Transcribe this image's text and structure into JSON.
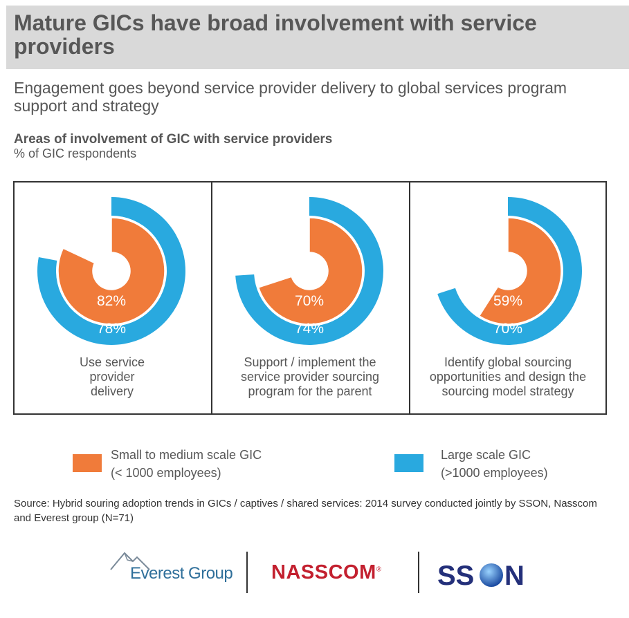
{
  "header": {
    "title": "Mature GICs have broad involvement with service providers",
    "subtitle": "Engagement goes beyond service provider delivery to global services program support and strategy"
  },
  "chart_data": {
    "type": "donut",
    "title": "Areas of involvement of GIC with service providers",
    "subtitle": "% of GIC respondents",
    "unit": "%",
    "categories": [
      "Use service provider delivery",
      "Support / implement the service provider sourcing program for the parent",
      "Identify global sourcing opportunities and design the sourcing model strategy"
    ],
    "series": [
      {
        "name": "Small to medium scale GIC (< 1000 employees)",
        "ring": "inner",
        "color": "#f07b3a",
        "values": [
          82,
          70,
          59
        ]
      },
      {
        "name": "Large scale GIC (>1000 employees)",
        "ring": "outer",
        "color": "#29a9df",
        "values": [
          78,
          74,
          70
        ]
      }
    ]
  },
  "panels": [
    {
      "label_lines": [
        "Use service",
        "provider",
        "delivery"
      ],
      "inner_label": "82%",
      "outer_label": "78%"
    },
    {
      "label_lines": [
        "Support / implement the",
        "service provider sourcing",
        "program for the parent"
      ],
      "inner_label": "70%",
      "outer_label": "74%"
    },
    {
      "label_lines": [
        "Identify global sourcing",
        "opportunities and design the",
        "sourcing model strategy"
      ],
      "inner_label": "59%",
      "outer_label": "70%"
    }
  ],
  "legend": {
    "small": {
      "line1": "Small to medium scale GIC",
      "line2": "(< 1000 employees)",
      "color": "#f07b3a"
    },
    "large": {
      "line1": "Large scale GIC",
      "line2": "(>1000 employees)",
      "color": "#29a9df"
    }
  },
  "source": "Source: Hybrid souring adoption trends in GICs / captives / shared services: 2014 survey conducted jointly by SSON, Nasscom and Everest group (N=71)",
  "logos": {
    "everest": "Everest Group",
    "nasscom": "NASSCOM",
    "nasscom_mark": "®",
    "sson": "SSON"
  }
}
